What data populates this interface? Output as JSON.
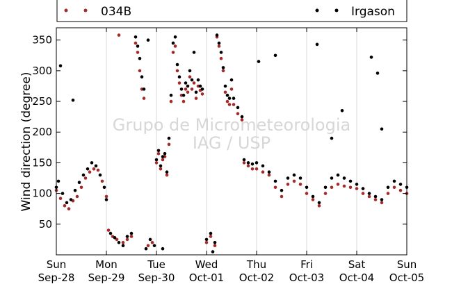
{
  "colors": {
    "series_034B": "#a52a2a",
    "series_irgason": "#000000",
    "gridline": "#d9d9d9",
    "watermark": "#d3d3d3"
  },
  "watermark": {
    "line1": "Grupo de Micrometeorologia",
    "line2": "IAG / USP"
  },
  "chart_data": {
    "type": "scatter",
    "title": "",
    "xlabel": "",
    "ylabel": "Wind direction (degree)",
    "ylim": [
      0,
      370
    ],
    "xlim_days": [
      "Sep-28",
      "Oct-05"
    ],
    "yticks": [
      50,
      100,
      150,
      200,
      250,
      300,
      350
    ],
    "xticks": [
      {
        "day": "Sun",
        "date": "Sep-28"
      },
      {
        "day": "Mon",
        "date": "Sep-29"
      },
      {
        "day": "Tue",
        "date": "Sep-30"
      },
      {
        "day": "Wed",
        "date": "Oct-01"
      },
      {
        "day": "Thu",
        "date": "Oct-02"
      },
      {
        "day": "Fri",
        "date": "Oct-03"
      },
      {
        "day": "Sat",
        "date": "Oct-04"
      },
      {
        "day": "Sun",
        "date": "Oct-05"
      }
    ],
    "grid": "vertical lines at day boundaries",
    "legend_position": "top (above plot)",
    "series": [
      {
        "name": "034B",
        "color": "#a52a2a",
        "points": [
          [
            "Sep-28 00:00",
            105
          ],
          [
            "Sep-28 02:00",
            92
          ],
          [
            "Sep-28 04:00",
            80
          ],
          [
            "Sep-28 06:00",
            75
          ],
          [
            "Sep-28 08:00",
            88
          ],
          [
            "Sep-28 10:00",
            95
          ],
          [
            "Sep-28 12:00",
            110
          ],
          [
            "Sep-28 14:00",
            125
          ],
          [
            "Sep-28 16:00",
            135
          ],
          [
            "Sep-28 18:00",
            140
          ],
          [
            "Sep-28 20:00",
            138
          ],
          [
            "Sep-28 22:00",
            120
          ],
          [
            "Sep-29 00:00",
            95
          ],
          [
            "Sep-29 01:00",
            40
          ],
          [
            "Sep-29 03:00",
            30
          ],
          [
            "Sep-29 05:00",
            25
          ],
          [
            "Sep-29 06:00",
            358
          ],
          [
            "Sep-29 08:00",
            20
          ],
          [
            "Sep-29 10:00",
            25
          ],
          [
            "Sep-29 12:00",
            30
          ],
          [
            "Sep-29 14:00",
            345
          ],
          [
            "Sep-29 15:00",
            330
          ],
          [
            "Sep-29 16:00",
            300
          ],
          [
            "Sep-29 17:00",
            270
          ],
          [
            "Sep-29 18:00",
            255
          ],
          [
            "Sep-29 20:00",
            15
          ],
          [
            "Sep-29 22:00",
            20
          ],
          [
            "Sep-30 00:00",
            150
          ],
          [
            "Sep-30 01:00",
            165
          ],
          [
            "Sep-30 02:00",
            140
          ],
          [
            "Sep-30 03:00",
            155
          ],
          [
            "Sep-30 04:00",
            160
          ],
          [
            "Sep-30 05:00",
            130
          ],
          [
            "Sep-30 06:00",
            180
          ],
          [
            "Sep-30 07:00",
            250
          ],
          [
            "Sep-30 08:00",
            330
          ],
          [
            "Sep-30 09:00",
            340
          ],
          [
            "Sep-30 10:00",
            300
          ],
          [
            "Sep-30 11:00",
            280
          ],
          [
            "Sep-30 12:00",
            260
          ],
          [
            "Sep-30 13:00",
            250
          ],
          [
            "Sep-30 14:00",
            270
          ],
          [
            "Sep-30 15:00",
            265
          ],
          [
            "Sep-30 16:00",
            290
          ],
          [
            "Sep-30 17:00",
            270
          ],
          [
            "Sep-30 18:00",
            280
          ],
          [
            "Sep-30 19:00",
            255
          ],
          [
            "Sep-30 20:00",
            275
          ],
          [
            "Sep-30 21:00",
            268
          ],
          [
            "Sep-30 22:00",
            262
          ],
          [
            "Oct-01 00:00",
            20
          ],
          [
            "Oct-01 02:00",
            30
          ],
          [
            "Oct-01 04:00",
            15
          ],
          [
            "Oct-01 05:00",
            355
          ],
          [
            "Oct-01 06:00",
            340
          ],
          [
            "Oct-01 07:00",
            320
          ],
          [
            "Oct-01 08:00",
            300
          ],
          [
            "Oct-01 09:00",
            265
          ],
          [
            "Oct-01 10:00",
            250
          ],
          [
            "Oct-01 11:00",
            245
          ],
          [
            "Oct-01 12:00",
            270
          ],
          [
            "Oct-01 13:00",
            245
          ],
          [
            "Oct-01 15:00",
            230
          ],
          [
            "Oct-01 17:00",
            220
          ],
          [
            "Oct-01 18:00",
            150
          ],
          [
            "Oct-01 20:00",
            145
          ],
          [
            "Oct-01 22:00",
            140
          ],
          [
            "Oct-02 00:00",
            140
          ],
          [
            "Oct-02 03:00",
            135
          ],
          [
            "Oct-02 06:00",
            130
          ],
          [
            "Oct-02 09:00",
            110
          ],
          [
            "Oct-02 12:00",
            95
          ],
          [
            "Oct-02 15:00",
            115
          ],
          [
            "Oct-02 18:00",
            120
          ],
          [
            "Oct-02 21:00",
            115
          ],
          [
            "Oct-03 00:00",
            100
          ],
          [
            "Oct-03 03:00",
            90
          ],
          [
            "Oct-03 06:00",
            80
          ],
          [
            "Oct-03 09:00",
            100
          ],
          [
            "Oct-03 12:00",
            110
          ],
          [
            "Oct-03 15:00",
            115
          ],
          [
            "Oct-03 18:00",
            112
          ],
          [
            "Oct-03 21:00",
            110
          ],
          [
            "Oct-04 00:00",
            108
          ],
          [
            "Oct-04 03:00",
            100
          ],
          [
            "Oct-04 06:00",
            95
          ],
          [
            "Oct-04 09:00",
            90
          ],
          [
            "Oct-04 12:00",
            85
          ],
          [
            "Oct-04 15:00",
            100
          ],
          [
            "Oct-04 18:00",
            110
          ],
          [
            "Oct-04 21:00",
            105
          ],
          [
            "Oct-05 00:00",
            100
          ]
        ]
      },
      {
        "name": "Irgason",
        "color": "#000000",
        "points": [
          [
            "Sep-28 00:00",
            110
          ],
          [
            "Sep-28 01:00",
            120
          ],
          [
            "Sep-28 03:00",
            100
          ],
          [
            "Sep-28 05:00",
            85
          ],
          [
            "Sep-28 07:00",
            90
          ],
          [
            "Sep-28 09:00",
            105
          ],
          [
            "Sep-28 11:00",
            118
          ],
          [
            "Sep-28 13:00",
            130
          ],
          [
            "Sep-28 15:00",
            140
          ],
          [
            "Sep-28 17:00",
            150
          ],
          [
            "Sep-28 19:00",
            145
          ],
          [
            "Sep-28 21:00",
            130
          ],
          [
            "Sep-28 23:00",
            110
          ],
          [
            "Sep-28 02:00",
            308
          ],
          [
            "Sep-28 08:00",
            252
          ],
          [
            "Sep-29 00:00",
            90
          ],
          [
            "Sep-29 02:00",
            35
          ],
          [
            "Sep-29 04:00",
            28
          ],
          [
            "Sep-29 06:00",
            20
          ],
          [
            "Sep-29 08:00",
            15
          ],
          [
            "Sep-29 10:00",
            30
          ],
          [
            "Sep-29 12:00",
            35
          ],
          [
            "Sep-29 14:00",
            355
          ],
          [
            "Sep-29 15:00",
            340
          ],
          [
            "Sep-29 16:00",
            320
          ],
          [
            "Sep-29 17:00",
            290
          ],
          [
            "Sep-29 18:00",
            270
          ],
          [
            "Sep-29 19:00",
            10
          ],
          [
            "Sep-29 21:00",
            25
          ],
          [
            "Sep-29 23:00",
            15
          ],
          [
            "Sep-29 20:00",
            350
          ],
          [
            "Sep-30 00:00",
            155
          ],
          [
            "Sep-30 01:00",
            170
          ],
          [
            "Sep-30 02:00",
            145
          ],
          [
            "Sep-30 03:00",
            160
          ],
          [
            "Sep-30 04:00",
            165
          ],
          [
            "Sep-30 05:00",
            135
          ],
          [
            "Sep-30 06:00",
            190
          ],
          [
            "Sep-30 07:00",
            260
          ],
          [
            "Sep-30 08:00",
            345
          ],
          [
            "Sep-30 09:00",
            355
          ],
          [
            "Sep-30 10:00",
            310
          ],
          [
            "Sep-30 11:00",
            290
          ],
          [
            "Sep-30 12:00",
            270
          ],
          [
            "Sep-30 13:00",
            260
          ],
          [
            "Sep-30 14:00",
            280
          ],
          [
            "Sep-30 15:00",
            275
          ],
          [
            "Sep-30 16:00",
            300
          ],
          [
            "Sep-30 17:00",
            285
          ],
          [
            "Sep-30 18:00",
            330
          ],
          [
            "Sep-30 19:00",
            265
          ],
          [
            "Sep-30 20:00",
            285
          ],
          [
            "Sep-30 21:00",
            275
          ],
          [
            "Sep-30 22:00",
            270
          ],
          [
            "Sep-30 03:00",
            10
          ],
          [
            "Oct-01 00:00",
            25
          ],
          [
            "Oct-01 02:00",
            35
          ],
          [
            "Oct-01 04:00",
            20
          ],
          [
            "Oct-01 05:00",
            358
          ],
          [
            "Oct-01 06:00",
            345
          ],
          [
            "Oct-01 07:00",
            330
          ],
          [
            "Oct-01 08:00",
            305
          ],
          [
            "Oct-01 09:00",
            275
          ],
          [
            "Oct-01 10:00",
            260
          ],
          [
            "Oct-01 11:00",
            255
          ],
          [
            "Oct-01 12:00",
            285
          ],
          [
            "Oct-01 13:00",
            255
          ],
          [
            "Oct-01 15:00",
            240
          ],
          [
            "Oct-01 17:00",
            225
          ],
          [
            "Oct-01 18:00",
            155
          ],
          [
            "Oct-01 20:00",
            150
          ],
          [
            "Oct-01 22:00",
            148
          ],
          [
            "Oct-01 03:00",
            5
          ],
          [
            "Oct-02 00:00",
            150
          ],
          [
            "Oct-02 03:00",
            145
          ],
          [
            "Oct-02 06:00",
            135
          ],
          [
            "Oct-02 09:00",
            120
          ],
          [
            "Oct-02 12:00",
            105
          ],
          [
            "Oct-02 15:00",
            125
          ],
          [
            "Oct-02 18:00",
            130
          ],
          [
            "Oct-02 21:00",
            125
          ],
          [
            "Oct-02 01:00",
            315
          ],
          [
            "Oct-02 09:00",
            325
          ],
          [
            "Oct-03 00:00",
            110
          ],
          [
            "Oct-03 03:00",
            95
          ],
          [
            "Oct-03 06:00",
            85
          ],
          [
            "Oct-03 09:00",
            110
          ],
          [
            "Oct-03 12:00",
            125
          ],
          [
            "Oct-03 15:00",
            130
          ],
          [
            "Oct-03 18:00",
            125
          ],
          [
            "Oct-03 21:00",
            120
          ],
          [
            "Oct-03 05:00",
            343
          ],
          [
            "Oct-03 12:00",
            190
          ],
          [
            "Oct-03 17:00",
            235
          ],
          [
            "Oct-04 00:00",
            115
          ],
          [
            "Oct-04 03:00",
            108
          ],
          [
            "Oct-04 06:00",
            100
          ],
          [
            "Oct-04 09:00",
            95
          ],
          [
            "Oct-04 12:00",
            90
          ],
          [
            "Oct-04 15:00",
            110
          ],
          [
            "Oct-04 18:00",
            120
          ],
          [
            "Oct-04 21:00",
            115
          ],
          [
            "Oct-04 07:00",
            322
          ],
          [
            "Oct-04 10:00",
            296
          ],
          [
            "Oct-04 12:00",
            205
          ],
          [
            "Oct-05 00:00",
            110
          ]
        ]
      }
    ]
  }
}
